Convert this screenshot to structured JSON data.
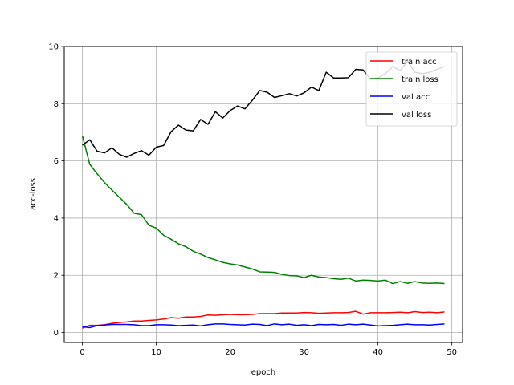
{
  "chart_data": {
    "type": "line",
    "title": "",
    "xlabel": "epoch",
    "ylabel": "acc-loss",
    "xlim": [
      -2.45,
      51.45
    ],
    "ylim": [
      -0.35,
      10
    ],
    "xticks": [
      0,
      10,
      20,
      30,
      40,
      50
    ],
    "yticks": [
      0,
      2,
      4,
      6,
      8,
      10
    ],
    "grid": true,
    "legend_position": "top-right",
    "x": [
      0,
      1,
      2,
      3,
      4,
      5,
      6,
      7,
      8,
      9,
      10,
      11,
      12,
      13,
      14,
      15,
      16,
      17,
      18,
      19,
      20,
      21,
      22,
      23,
      24,
      25,
      26,
      27,
      28,
      29,
      30,
      31,
      32,
      33,
      34,
      35,
      36,
      37,
      38,
      39,
      40,
      41,
      42,
      43,
      44,
      45,
      46,
      47,
      48,
      49
    ],
    "series": [
      {
        "name": "train acc",
        "color": "#ff0000",
        "values": [
          0.15,
          0.25,
          0.25,
          0.27,
          0.32,
          0.35,
          0.37,
          0.4,
          0.4,
          0.42,
          0.44,
          0.47,
          0.52,
          0.5,
          0.54,
          0.54,
          0.56,
          0.61,
          0.6,
          0.62,
          0.63,
          0.62,
          0.62,
          0.63,
          0.66,
          0.66,
          0.66,
          0.68,
          0.68,
          0.68,
          0.7,
          0.69,
          0.67,
          0.68,
          0.69,
          0.69,
          0.7,
          0.74,
          0.64,
          0.69,
          0.69,
          0.69,
          0.7,
          0.71,
          0.69,
          0.73,
          0.7,
          0.71,
          0.69,
          0.72
        ]
      },
      {
        "name": "train loss",
        "color": "#008000",
        "values": [
          6.88,
          5.88,
          5.55,
          5.24,
          4.98,
          4.73,
          4.48,
          4.17,
          4.12,
          3.75,
          3.65,
          3.4,
          3.26,
          3.1,
          3.0,
          2.84,
          2.74,
          2.62,
          2.54,
          2.45,
          2.4,
          2.36,
          2.29,
          2.22,
          2.12,
          2.11,
          2.1,
          2.03,
          1.99,
          1.98,
          1.92,
          2.0,
          1.94,
          1.92,
          1.88,
          1.86,
          1.9,
          1.8,
          1.83,
          1.82,
          1.8,
          1.83,
          1.71,
          1.78,
          1.72,
          1.78,
          1.73,
          1.72,
          1.73,
          1.71
        ]
      },
      {
        "name": "val acc",
        "color": "#0000ff",
        "values": [
          0.2,
          0.17,
          0.24,
          0.26,
          0.28,
          0.28,
          0.28,
          0.27,
          0.24,
          0.24,
          0.27,
          0.27,
          0.26,
          0.24,
          0.25,
          0.26,
          0.23,
          0.27,
          0.3,
          0.3,
          0.28,
          0.27,
          0.26,
          0.29,
          0.28,
          0.24,
          0.3,
          0.27,
          0.29,
          0.25,
          0.27,
          0.24,
          0.28,
          0.27,
          0.28,
          0.25,
          0.29,
          0.27,
          0.29,
          0.26,
          0.23,
          0.24,
          0.25,
          0.27,
          0.29,
          0.27,
          0.27,
          0.26,
          0.28,
          0.3
        ]
      },
      {
        "name": "val loss",
        "color": "#000000",
        "values": [
          6.55,
          6.74,
          6.34,
          6.28,
          6.46,
          6.23,
          6.13,
          6.26,
          6.36,
          6.2,
          6.48,
          6.54,
          7.02,
          7.25,
          7.08,
          7.05,
          7.45,
          7.28,
          7.72,
          7.5,
          7.76,
          7.92,
          7.82,
          8.12,
          8.46,
          8.4,
          8.22,
          8.28,
          8.35,
          8.27,
          8.38,
          8.58,
          8.46,
          9.1,
          8.9,
          8.9,
          8.91,
          9.2,
          9.18,
          8.85,
          8.9,
          9.05,
          9.3,
          9.15,
          9.5,
          9.1,
          9.05,
          9.1,
          9.2,
          9.3
        ]
      }
    ]
  }
}
